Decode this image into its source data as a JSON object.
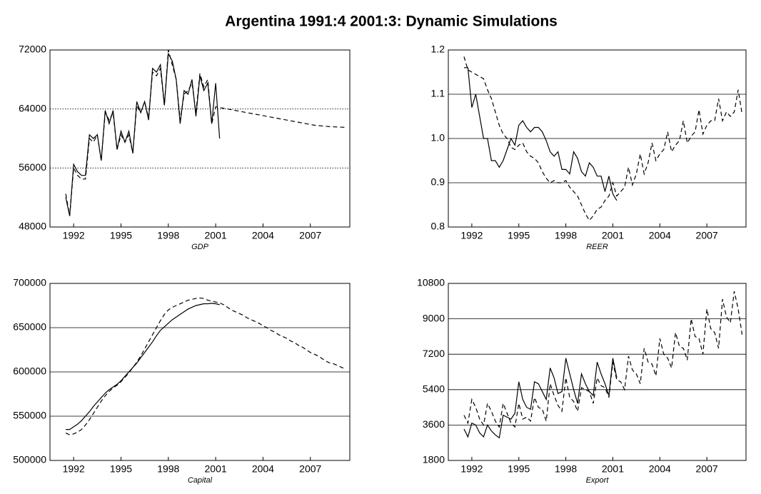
{
  "title": "Argentina 1991:4 2001:3: Dynamic Simulations",
  "chart_data": [
    {
      "type": "line",
      "xlabel": "GDP",
      "grid": true,
      "grid_style": "dotted",
      "xlim": [
        1990.5,
        2009.5
      ],
      "xticks": [
        1992,
        1995,
        1998,
        2001,
        2004,
        2007
      ],
      "ylim": [
        48000,
        72000
      ],
      "yticks": [
        48000,
        56000,
        64000,
        72000
      ],
      "x": [
        1991.5,
        1991.75,
        1992,
        1992.25,
        1992.5,
        1992.75,
        1993,
        1993.25,
        1993.5,
        1993.75,
        1994,
        1994.25,
        1994.5,
        1994.75,
        1995,
        1995.25,
        1995.5,
        1995.75,
        1996,
        1996.25,
        1996.5,
        1996.75,
        1997,
        1997.25,
        1997.5,
        1997.75,
        1998,
        1998.25,
        1998.5,
        1998.75,
        1999,
        1999.25,
        1999.5,
        1999.75,
        2000,
        2000.25,
        2000.5,
        2000.75,
        2001,
        2001.25,
        2001.5,
        2001.75,
        2002,
        2002.25,
        2002.5,
        2002.75,
        2003,
        2003.25,
        2003.5,
        2003.75,
        2004,
        2004.25,
        2004.5,
        2004.75,
        2005,
        2005.25,
        2005.5,
        2005.75,
        2006,
        2006.25,
        2006.5,
        2006.75,
        2007,
        2007.25,
        2007.5,
        2007.75,
        2008,
        2008.25,
        2008.5,
        2008.75,
        2009,
        2009.25
      ],
      "series": [
        {
          "color": "#000000",
          "dash": "solid",
          "values": [
            52000,
            49500,
            56500,
            55500,
            55000,
            55000,
            60500,
            60000,
            60500,
            57000,
            63800,
            62000,
            63800,
            58500,
            61000,
            59500,
            61000,
            58000,
            65000,
            63500,
            65000,
            62500,
            69500,
            69000,
            70000,
            64500,
            71500,
            70500,
            68000,
            62000,
            66500,
            66000,
            68000,
            63000,
            68500,
            66500,
            67500,
            62000,
            67500,
            60000,
            null,
            null,
            null,
            null,
            null,
            null,
            null,
            null,
            null,
            null,
            null,
            null,
            null,
            null,
            null,
            null,
            null,
            null,
            null,
            null,
            null,
            null,
            null,
            null,
            null,
            null,
            null,
            null,
            null,
            null,
            null,
            null
          ]
        },
        {
          "color": "#000000",
          "dash": "dashed",
          "values": [
            52500,
            49500,
            56000,
            55000,
            54500,
            54500,
            60000,
            59500,
            60500,
            57000,
            63500,
            62500,
            63500,
            58500,
            60500,
            59500,
            60500,
            58000,
            64500,
            63500,
            65000,
            62800,
            69000,
            68500,
            69500,
            64500,
            72000,
            70000,
            68000,
            62500,
            66000,
            66500,
            67500,
            63500,
            68800,
            67000,
            68000,
            62000,
            64300,
            64200,
            64100,
            64000,
            63900,
            63800,
            63700,
            63600,
            63500,
            63400,
            63300,
            63200,
            63100,
            63000,
            62900,
            62800,
            62700,
            62600,
            62500,
            62400,
            62300,
            62200,
            62100,
            62000,
            61900,
            61800,
            61750,
            61700,
            61650,
            61600,
            61580,
            61560,
            61530,
            61500
          ]
        }
      ]
    },
    {
      "type": "line",
      "xlabel": "REER",
      "grid": true,
      "grid_style": "solid",
      "xlim": [
        1990.5,
        2009.5
      ],
      "xticks": [
        1992,
        1995,
        1998,
        2001,
        2004,
        2007
      ],
      "ylim": [
        0.8,
        1.2
      ],
      "yticks": [
        0.8,
        0.9,
        {
          "value": 1,
          "label": "1.0"
        },
        1.1,
        1.2
      ],
      "x": [
        1991.5,
        1991.75,
        1992,
        1992.25,
        1992.5,
        1992.75,
        1993,
        1993.25,
        1993.5,
        1993.75,
        1994,
        1994.25,
        1994.5,
        1994.75,
        1995,
        1995.25,
        1995.5,
        1995.75,
        1996,
        1996.25,
        1996.5,
        1996.75,
        1997,
        1997.25,
        1997.5,
        1997.75,
        1998,
        1998.25,
        1998.5,
        1998.75,
        1999,
        1999.25,
        1999.5,
        1999.75,
        2000,
        2000.25,
        2000.5,
        2000.75,
        2001,
        2001.25,
        2001.5,
        2001.75,
        2002,
        2002.25,
        2002.5,
        2002.75,
        2003,
        2003.25,
        2003.5,
        2003.75,
        2004,
        2004.25,
        2004.5,
        2004.75,
        2005,
        2005.25,
        2005.5,
        2005.75,
        2006,
        2006.25,
        2006.5,
        2006.75,
        2007,
        2007.25,
        2007.5,
        2007.75,
        2008,
        2008.25,
        2008.5,
        2008.75,
        2009,
        2009.25
      ],
      "series": [
        {
          "color": "#000000",
          "dash": "solid",
          "values": [
            1.16,
            1.16,
            1.07,
            1.1,
            1.05,
            1.0,
            1.0,
            0.95,
            0.95,
            0.935,
            0.95,
            0.975,
            1.0,
            0.985,
            1.03,
            1.04,
            1.025,
            1.015,
            1.025,
            1.025,
            1.015,
            0.995,
            0.97,
            0.96,
            0.97,
            0.93,
            0.93,
            0.92,
            0.97,
            0.955,
            0.925,
            0.915,
            0.945,
            0.935,
            0.915,
            0.915,
            0.88,
            0.915,
            0.875,
            0.86,
            null,
            null,
            null,
            null,
            null,
            null,
            null,
            null,
            null,
            null,
            null,
            null,
            null,
            null,
            null,
            null,
            null,
            null,
            null,
            null,
            null,
            null,
            null,
            null,
            null,
            null,
            null,
            null,
            null,
            null,
            null,
            null
          ]
        },
        {
          "color": "#000000",
          "dash": "dashed",
          "values": [
            1.185,
            1.155,
            1.15,
            1.145,
            1.14,
            1.135,
            1.11,
            1.09,
            1.06,
            1.03,
            1.01,
            1.0,
            0.98,
            0.975,
            0.985,
            0.99,
            0.97,
            0.96,
            0.955,
            0.945,
            0.925,
            0.91,
            0.9,
            0.905,
            0.9,
            0.9,
            0.905,
            0.89,
            0.88,
            0.87,
            0.85,
            0.83,
            0.815,
            0.825,
            0.84,
            0.845,
            0.86,
            0.87,
            0.9,
            0.87,
            0.88,
            0.89,
            0.935,
            0.895,
            0.92,
            0.965,
            0.92,
            0.945,
            0.99,
            0.95,
            0.965,
            0.975,
            1.015,
            0.97,
            0.985,
            0.995,
            1.04,
            0.99,
            1.005,
            1.015,
            1.065,
            1.01,
            1.03,
            1.04,
            1.04,
            1.09,
            1.04,
            1.06,
            1.05,
            1.06,
            1.11,
            1.055
          ]
        }
      ]
    },
    {
      "type": "line",
      "xlabel": "Capital",
      "grid": true,
      "grid_style": "solid",
      "xlim": [
        1990.5,
        2009.5
      ],
      "xticks": [
        1992,
        1995,
        1998,
        2001,
        2004,
        2007
      ],
      "ylim": [
        500000,
        700000
      ],
      "yticks": [
        500000,
        550000,
        600000,
        650000,
        700000
      ],
      "x": [
        1991.5,
        1991.75,
        1992,
        1992.25,
        1992.5,
        1992.75,
        1993,
        1993.25,
        1993.5,
        1993.75,
        1994,
        1994.25,
        1994.5,
        1994.75,
        1995,
        1995.25,
        1995.5,
        1995.75,
        1996,
        1996.25,
        1996.5,
        1996.75,
        1997,
        1997.25,
        1997.5,
        1997.75,
        1998,
        1998.25,
        1998.5,
        1998.75,
        1999,
        1999.25,
        1999.5,
        1999.75,
        2000,
        2000.25,
        2000.5,
        2000.75,
        2001,
        2001.25,
        2001.5,
        2001.75,
        2002,
        2002.25,
        2002.5,
        2002.75,
        2003,
        2003.25,
        2003.5,
        2003.75,
        2004,
        2004.25,
        2004.5,
        2004.75,
        2005,
        2005.25,
        2005.5,
        2005.75,
        2006,
        2006.25,
        2006.5,
        2006.75,
        2007,
        2007.25,
        2007.5,
        2007.75,
        2008,
        2008.25,
        2008.5,
        2008.75,
        2009,
        2009.25
      ],
      "series": [
        {
          "color": "#000000",
          "dash": "solid",
          "values": [
            535000,
            535000,
            538000,
            541000,
            545000,
            550000,
            555000,
            561000,
            566000,
            571000,
            576000,
            580000,
            583000,
            586000,
            590000,
            595000,
            600000,
            605000,
            610000,
            616000,
            622000,
            628000,
            634000,
            641000,
            647000,
            651000,
            655000,
            659000,
            662000,
            665000,
            668000,
            671000,
            673000,
            675000,
            676000,
            677000,
            677000,
            677500,
            677000,
            676000,
            null,
            null,
            null,
            null,
            null,
            null,
            null,
            null,
            null,
            null,
            null,
            null,
            null,
            null,
            null,
            null,
            null,
            null,
            null,
            null,
            null,
            null,
            null,
            null,
            null,
            null,
            null,
            null,
            null,
            null,
            null,
            null
          ]
        },
        {
          "color": "#000000",
          "dash": "dashed",
          "values": [
            531000,
            529000,
            530000,
            532000,
            535000,
            540000,
            546000,
            553000,
            560000,
            567000,
            573000,
            578000,
            582000,
            585000,
            589000,
            594000,
            599000,
            605000,
            611000,
            618000,
            626000,
            634000,
            642000,
            650000,
            658000,
            665000,
            670000,
            673000,
            675000,
            677000,
            679000,
            681000,
            682000,
            683000,
            683500,
            683000,
            681000,
            680000,
            679000,
            678000,
            676000,
            673000,
            670000,
            668000,
            666000,
            664000,
            661000,
            659000,
            657000,
            655000,
            652000,
            650000,
            647000,
            645000,
            642000,
            640000,
            638000,
            635000,
            633000,
            630000,
            628000,
            625000,
            622000,
            620000,
            618000,
            615000,
            612000,
            610000,
            609000,
            607000,
            605000,
            603000
          ]
        }
      ]
    },
    {
      "type": "line",
      "xlabel": "Export",
      "grid": true,
      "grid_style": "solid",
      "xlim": [
        1990.5,
        2009.5
      ],
      "xticks": [
        1992,
        1995,
        1998,
        2001,
        2004,
        2007
      ],
      "ylim": [
        1800,
        10800
      ],
      "yticks": [
        1800,
        3600,
        5400,
        7200,
        9000,
        10800
      ],
      "x": [
        1991.5,
        1991.75,
        1992,
        1992.25,
        1992.5,
        1992.75,
        1993,
        1993.25,
        1993.5,
        1993.75,
        1994,
        1994.25,
        1994.5,
        1994.75,
        1995,
        1995.25,
        1995.5,
        1995.75,
        1996,
        1996.25,
        1996.5,
        1996.75,
        1997,
        1997.25,
        1997.5,
        1997.75,
        1998,
        1998.25,
        1998.5,
        1998.75,
        1999,
        1999.25,
        1999.5,
        1999.75,
        2000,
        2000.25,
        2000.5,
        2000.75,
        2001,
        2001.25,
        2001.5,
        2001.75,
        2002,
        2002.25,
        2002.5,
        2002.75,
        2003,
        2003.25,
        2003.5,
        2003.75,
        2004,
        2004.25,
        2004.5,
        2004.75,
        2005,
        2005.25,
        2005.5,
        2005.75,
        2006,
        2006.25,
        2006.5,
        2006.75,
        2007,
        2007.25,
        2007.5,
        2007.75,
        2008,
        2008.25,
        2008.5,
        2008.75,
        2009,
        2009.25
      ],
      "series": [
        {
          "color": "#000000",
          "dash": "solid",
          "values": [
            3400,
            3000,
            3700,
            3600,
            3200,
            3000,
            3600,
            3300,
            3100,
            2950,
            4100,
            4000,
            3900,
            4200,
            5800,
            4900,
            4500,
            4400,
            5800,
            5700,
            5300,
            4900,
            6500,
            6000,
            5200,
            5300,
            7000,
            6200,
            5400,
            4700,
            6200,
            5700,
            5300,
            5100,
            6800,
            6200,
            5700,
            5100,
            7000,
            6000,
            null,
            null,
            null,
            null,
            null,
            null,
            null,
            null,
            null,
            null,
            null,
            null,
            null,
            null,
            null,
            null,
            null,
            null,
            null,
            null,
            null,
            null,
            null,
            null,
            null,
            null,
            null,
            null,
            null,
            null,
            null,
            null
          ]
        },
        {
          "color": "#000000",
          "dash": "dashed",
          "values": [
            4100,
            3700,
            4900,
            4500,
            3900,
            3600,
            4700,
            4300,
            3800,
            3500,
            4700,
            4200,
            3700,
            3500,
            4700,
            3900,
            4000,
            3800,
            5000,
            4500,
            4400,
            3800,
            5700,
            5100,
            4600,
            4300,
            6000,
            5000,
            4800,
            4300,
            5500,
            5400,
            5300,
            4700,
            6000,
            5600,
            5500,
            5000,
            6800,
            5900,
            5800,
            5400,
            7100,
            6400,
            6200,
            5700,
            7500,
            6800,
            6700,
            6100,
            8000,
            7200,
            7000,
            6500,
            8300,
            7600,
            7500,
            6900,
            9000,
            8100,
            8000,
            7200,
            9500,
            8500,
            8300,
            7500,
            10000,
            9100,
            8800,
            10400,
            9500,
            8200
          ]
        }
      ]
    }
  ]
}
